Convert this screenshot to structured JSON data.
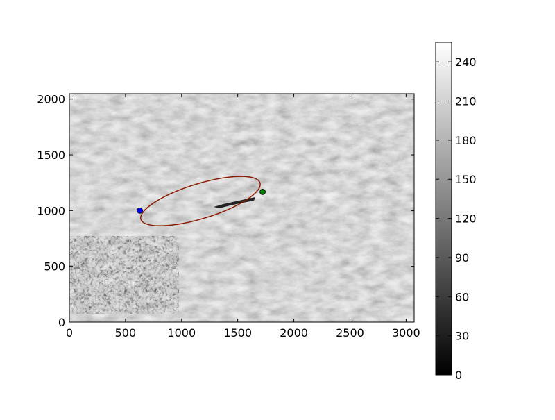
{
  "chart_data": {
    "type": "heatmap",
    "description_free": true,
    "image_extent": {
      "x": [
        0,
        3072
      ],
      "y": [
        0,
        2048
      ]
    },
    "xlim": [
      0,
      3072
    ],
    "ylim": [
      0,
      2048
    ],
    "x_ticks": [
      0,
      500,
      1000,
      1500,
      2000,
      2500,
      3000
    ],
    "x_tick_labels": [
      "0",
      "500",
      "1000",
      "1500",
      "2000",
      "2500",
      "3000"
    ],
    "y_ticks": [
      0,
      500,
      1000,
      1500,
      2000
    ],
    "y_tick_labels": [
      "0",
      "500",
      "1000",
      "1500",
      "2000"
    ],
    "title": "",
    "xlabel": "",
    "ylabel": "",
    "colormap": "gray",
    "colorbar": {
      "vmin": 0,
      "vmax": 255,
      "ticks": [
        0,
        30,
        60,
        90,
        120,
        150,
        180,
        210,
        240
      ],
      "tick_labels": [
        "0",
        "30",
        "60",
        "90",
        "120",
        "150",
        "180",
        "210",
        "240"
      ]
    },
    "ellipse": {
      "center": [
        1168,
        1085
      ],
      "semi_major": 555,
      "semi_minor": 155,
      "angle_deg": 17,
      "color": "#8b1a00"
    },
    "points": [
      {
        "x": 628,
        "y": 1000,
        "color": "#0000ff"
      },
      {
        "x": 1722,
        "y": 1168,
        "color": "#008000"
      }
    ]
  }
}
